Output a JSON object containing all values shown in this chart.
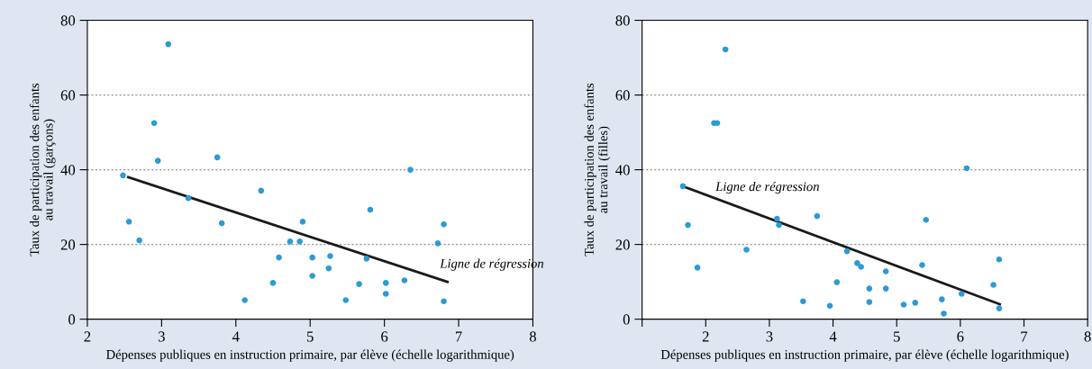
{
  "chart_data": [
    {
      "type": "scatter",
      "xlabel": "Dépenses publiques en instruction primaire, par élève (échelle logarithmique)",
      "ylabel": "Taux de participation des enfants\nau travail (garçons)",
      "xlim": [
        2,
        8
      ],
      "xticks": [
        2,
        3,
        4,
        5,
        6,
        7,
        8
      ],
      "ylim": [
        0,
        80
      ],
      "yticks": [
        0,
        20,
        40,
        60,
        80
      ],
      "grid": "y",
      "series": [
        {
          "marker": "circle",
          "color": "#2b9ad6",
          "x": [
            3.09,
            2.9,
            2.95,
            3.75,
            2.48,
            6.35,
            4.34,
            3.36,
            2.56,
            3.81,
            4.9,
            5.81,
            6.8,
            2.7,
            4.73,
            4.86,
            6.72,
            4.58,
            5.03,
            5.27,
            5.76,
            5.25,
            5.03,
            4.5,
            5.66,
            6.02,
            6.27,
            4.12,
            5.48,
            6.02,
            6.8
          ],
          "values": [
            73.6,
            52.5,
            42.4,
            43.3,
            38.5,
            40,
            34.4,
            32.4,
            26.1,
            25.7,
            26.1,
            29.3,
            25.4,
            21.1,
            20.8,
            20.8,
            20.3,
            16.5,
            16.5,
            16.9,
            16.2,
            13.6,
            11.6,
            9.7,
            9.4,
            9.7,
            10.4,
            5.1,
            5.1,
            6.8,
            4.8
          ]
        },
        {
          "type": "line",
          "color": "#1a1a1a",
          "x": [
            2.55,
            6.85
          ],
          "values": [
            38,
            10
          ]
        }
      ],
      "annotations": [
        {
          "text": "Ligne de régression",
          "x": 6.85,
          "y": 10
        }
      ]
    },
    {
      "type": "scatter",
      "xlabel": "Dépenses publiques en instruction primaire, par élève (échelle logarithmique)",
      "ylabel": "Taux de participation des enfants\nau travail (filles)",
      "xlim": [
        1,
        8
      ],
      "xticks": [
        {
          "value": 1,
          "label": null
        },
        2,
        3,
        4,
        5,
        6,
        7,
        8
      ],
      "ylim": [
        0,
        80
      ],
      "yticks": [
        0,
        20,
        40,
        60,
        80
      ],
      "grid": "y",
      "series": [
        {
          "marker": "circle",
          "color": "#2b9ad6",
          "x": [
            2.31,
            2.13,
            2.18,
            6.1,
            1.64,
            1.72,
            3.12,
            3.15,
            3.75,
            5.46,
            2.64,
            4.22,
            1.87,
            4.38,
            4.44,
            5.4,
            4.83,
            6.61,
            4.06,
            6.52,
            4.57,
            4.83,
            6.02,
            3.53,
            3.95,
            4.57,
            5.11,
            5.29,
            5.71,
            5.74,
            6.61
          ],
          "values": [
            72.2,
            52.5,
            52.5,
            40.4,
            35.6,
            25.2,
            26.9,
            25.2,
            27.6,
            26.6,
            18.6,
            18.2,
            13.8,
            15,
            14,
            14.5,
            12.8,
            16,
            9.9,
            9.2,
            8.2,
            8.2,
            6.8,
            4.8,
            3.6,
            4.6,
            3.9,
            4.4,
            5.3,
            1.5,
            2.9
          ]
        },
        {
          "type": "line",
          "color": "#1a1a1a",
          "x": [
            1.65,
            6.62
          ],
          "values": [
            35.5,
            4
          ]
        }
      ],
      "annotations": [
        "Ligne de régression"
      ]
    }
  ]
}
